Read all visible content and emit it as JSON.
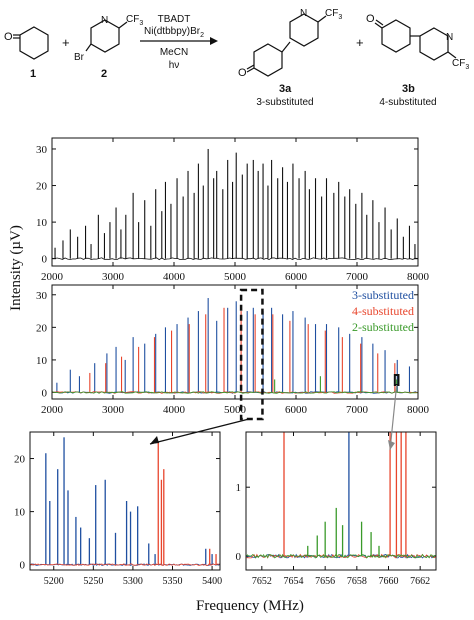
{
  "scheme": {
    "compound1_label": "1",
    "compound2_label": "2",
    "compound3a_label": "3a",
    "compound3a_note": "3-substituted",
    "compound3b_label": "3b",
    "compound3b_note": "4-substituted",
    "plus1": "+",
    "plus2": "+",
    "reagent1": "TBADT",
    "reagent2": "Ni(dtbbpy)Br",
    "reagent2_sub": "2",
    "solvent": "MeCN",
    "light": "hν",
    "atom_o": "O",
    "atom_n": "N",
    "atom_br": "Br",
    "cf3_main": "CF",
    "cf3_sub": "3"
  },
  "y_axis_label": "Intensity (µV)",
  "x_axis_label": "Frequency (MHz)",
  "colors": {
    "black": "#111111",
    "blue": "#1f4fa0",
    "red": "#e8452c",
    "green": "#3a9a2a"
  },
  "chart_data": [
    {
      "type": "line",
      "id": "top-spectrum",
      "x_range": [
        2000,
        8000
      ],
      "y_range": [
        -2,
        33
      ],
      "x_ticks": [
        "2000",
        "3000",
        "4000",
        "5000",
        "6000",
        "7000",
        "8000"
      ],
      "y_ticks": [
        "0",
        "10",
        "20",
        "30"
      ],
      "series": [
        {
          "color": "black",
          "note": "full experimental spectrum",
          "peaks": [
            [
              2050,
              3
            ],
            [
              2180,
              5
            ],
            [
              2300,
              8
            ],
            [
              2420,
              6
            ],
            [
              2550,
              9
            ],
            [
              2640,
              4
            ],
            [
              2760,
              12
            ],
            [
              2860,
              7
            ],
            [
              2950,
              10
            ],
            [
              3050,
              14
            ],
            [
              3130,
              8
            ],
            [
              3210,
              12
            ],
            [
              3330,
              18
            ],
            [
              3420,
              10
            ],
            [
              3520,
              16
            ],
            [
              3620,
              9
            ],
            [
              3700,
              19
            ],
            [
              3800,
              13
            ],
            [
              3860,
              21
            ],
            [
              3950,
              15
            ],
            [
              4050,
              22
            ],
            [
              4150,
              17
            ],
            [
              4230,
              24
            ],
            [
              4330,
              18
            ],
            [
              4400,
              26
            ],
            [
              4480,
              20
            ],
            [
              4560,
              30
            ],
            [
              4650,
              22
            ],
            [
              4700,
              24
            ],
            [
              4800,
              19
            ],
            [
              4880,
              27
            ],
            [
              4960,
              21
            ],
            [
              5020,
              29
            ],
            [
              5120,
              23
            ],
            [
              5200,
              26
            ],
            [
              5300,
              27
            ],
            [
              5380,
              24
            ],
            [
              5460,
              26
            ],
            [
              5540,
              20
            ],
            [
              5600,
              27
            ],
            [
              5700,
              22
            ],
            [
              5780,
              25
            ],
            [
              5860,
              21
            ],
            [
              5950,
              26
            ],
            [
              6050,
              22
            ],
            [
              6150,
              24
            ],
            [
              6220,
              19
            ],
            [
              6320,
              22
            ],
            [
              6420,
              17
            ],
            [
              6500,
              22
            ],
            [
              6620,
              18
            ],
            [
              6700,
              21
            ],
            [
              6800,
              17
            ],
            [
              6880,
              19
            ],
            [
              6980,
              15
            ],
            [
              7080,
              18
            ],
            [
              7160,
              12
            ],
            [
              7260,
              16
            ],
            [
              7360,
              10
            ],
            [
              7460,
              14
            ],
            [
              7560,
              8
            ],
            [
              7660,
              11
            ],
            [
              7760,
              6
            ],
            [
              7860,
              9
            ],
            [
              7950,
              4
            ]
          ]
        }
      ]
    },
    {
      "type": "line",
      "id": "middle-spectrum",
      "x_range": [
        2000,
        8000
      ],
      "y_range": [
        -2,
        33
      ],
      "x_ticks": [
        "2000",
        "3000",
        "4000",
        "5000",
        "6000",
        "7000",
        "8000"
      ],
      "y_ticks": [
        "0",
        "10",
        "20",
        "30"
      ],
      "legend_position": "top-right",
      "series": [
        {
          "name": "3-substituted",
          "color": "blue",
          "peaks": [
            [
              2080,
              3
            ],
            [
              2300,
              7
            ],
            [
              2450,
              5
            ],
            [
              2700,
              9
            ],
            [
              2900,
              12
            ],
            [
              3050,
              14
            ],
            [
              3200,
              10
            ],
            [
              3330,
              17
            ],
            [
              3520,
              15
            ],
            [
              3700,
              18
            ],
            [
              3860,
              20
            ],
            [
              4050,
              21
            ],
            [
              4230,
              23
            ],
            [
              4400,
              25
            ],
            [
              4560,
              29
            ],
            [
              4700,
              22
            ],
            [
              4880,
              26
            ],
            [
              5020,
              28
            ],
            [
              5200,
              25
            ],
            [
              5300,
              26
            ],
            [
              5460,
              25
            ],
            [
              5600,
              26
            ],
            [
              5780,
              24
            ],
            [
              5950,
              25
            ],
            [
              6150,
              23
            ],
            [
              6320,
              21
            ],
            [
              6500,
              21
            ],
            [
              6700,
              20
            ],
            [
              6880,
              18
            ],
            [
              7080,
              17
            ],
            [
              7260,
              15
            ],
            [
              7460,
              13
            ],
            [
              7660,
              10
            ],
            [
              7860,
              8
            ]
          ]
        },
        {
          "name": "4-substituted",
          "color": "red",
          "peaks": [
            [
              2620,
              6
            ],
            [
              2880,
              9
            ],
            [
              3140,
              11
            ],
            [
              3420,
              14
            ],
            [
              3680,
              17
            ],
            [
              3960,
              19
            ],
            [
              4250,
              21
            ],
            [
              4520,
              24
            ],
            [
              4820,
              26
            ],
            [
              5100,
              25
            ],
            [
              5330,
              24
            ],
            [
              5620,
              24
            ],
            [
              5900,
              22
            ],
            [
              6200,
              21
            ],
            [
              6480,
              19
            ],
            [
              6760,
              17
            ],
            [
              7060,
              15
            ],
            [
              7340,
              12
            ],
            [
              7620,
              9
            ]
          ]
        },
        {
          "name": "2-substituted",
          "color": "green",
          "peaks": [
            [
              5650,
              4
            ],
            [
              6400,
              5
            ],
            [
              7650,
              4
            ]
          ]
        }
      ]
    },
    {
      "type": "line",
      "id": "zoom-left",
      "x_range": [
        5170,
        5410
      ],
      "y_range": [
        -1,
        25
      ],
      "x_ticks": [
        "5200",
        "5250",
        "5300",
        "5350",
        "5400"
      ],
      "y_ticks": [
        "0",
        "10",
        "20"
      ],
      "series": [
        {
          "color": "blue",
          "peaks": [
            [
              5190,
              21
            ],
            [
              5195,
              12
            ],
            [
              5205,
              18
            ],
            [
              5213,
              24
            ],
            [
              5218,
              14
            ],
            [
              5228,
              9
            ],
            [
              5234,
              7
            ],
            [
              5245,
              5
            ],
            [
              5253,
              15
            ],
            [
              5265,
              16
            ],
            [
              5278,
              6
            ],
            [
              5292,
              12
            ],
            [
              5297,
              10
            ],
            [
              5306,
              11
            ],
            [
              5320,
              4
            ],
            [
              5328,
              2
            ],
            [
              5392,
              3
            ],
            [
              5400,
              2
            ]
          ]
        },
        {
          "color": "red",
          "peaks": [
            [
              5332,
              23
            ],
            [
              5336,
              16
            ],
            [
              5339,
              18
            ],
            [
              5397,
              3
            ],
            [
              5405,
              2
            ]
          ]
        }
      ]
    },
    {
      "type": "line",
      "id": "zoom-right",
      "x_range": [
        7651,
        7663
      ],
      "y_range": [
        -0.2,
        1.8
      ],
      "x_ticks": [
        "7652",
        "7654",
        "7656",
        "7658",
        "7660",
        "7662"
      ],
      "y_ticks": [
        "0",
        "1"
      ],
      "series": [
        {
          "color": "blue",
          "peaks": [
            [
              7657.5,
              1.8
            ]
          ]
        },
        {
          "color": "red",
          "peaks": [
            [
              7653.4,
              1.8
            ],
            [
              7660.1,
              1.8
            ],
            [
              7660.5,
              1.8
            ],
            [
              7660.8,
              1.8
            ],
            [
              7661.1,
              1.8
            ]
          ]
        },
        {
          "color": "green",
          "peaks": [
            [
              7654.9,
              0.15
            ],
            [
              7655.5,
              0.3
            ],
            [
              7656.0,
              0.5
            ],
            [
              7656.7,
              0.7
            ],
            [
              7657.1,
              0.45
            ],
            [
              7658.3,
              0.5
            ],
            [
              7658.9,
              0.35
            ],
            [
              7659.4,
              0.15
            ]
          ]
        }
      ]
    }
  ]
}
